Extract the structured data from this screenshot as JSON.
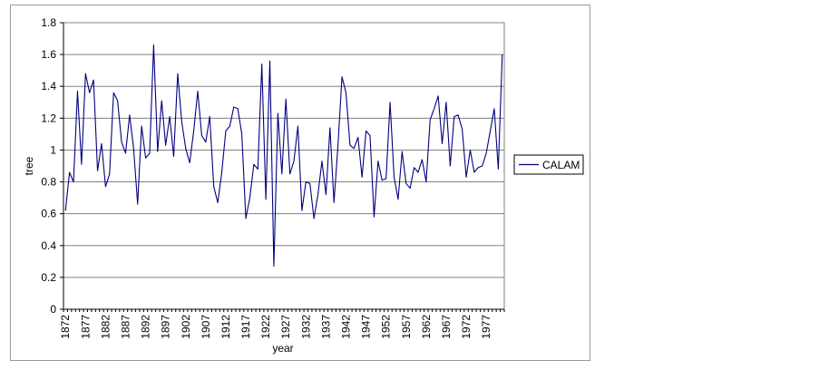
{
  "chart_data": {
    "type": "line",
    "xlabel": "year",
    "ylabel": "tree",
    "ylim": [
      0,
      1.8
    ],
    "y_ticks": [
      "0",
      "0.2",
      "0.4",
      "0.6",
      "0.8",
      "1",
      "1.2",
      "1.4",
      "1.6",
      "1.8"
    ],
    "x_ticks": [
      "1872",
      "1877",
      "1882",
      "1887",
      "1892",
      "1897",
      "1902",
      "1907",
      "1912",
      "1917",
      "1922",
      "1927",
      "1932",
      "1937",
      "1942",
      "1947",
      "1952",
      "1957",
      "1962",
      "1967",
      "1972",
      "1977"
    ],
    "grid": true,
    "legend_position": "right",
    "x_start": 1872,
    "x_end": 1980,
    "series": [
      {
        "name": "CALAM",
        "color": "#000080",
        "values": [
          0.62,
          0.86,
          0.8,
          1.37,
          0.91,
          1.48,
          1.36,
          1.44,
          0.87,
          1.04,
          0.77,
          0.85,
          1.36,
          1.31,
          1.05,
          0.98,
          1.22,
          1.01,
          0.66,
          1.15,
          0.95,
          0.98,
          1.66,
          0.99,
          1.31,
          1.03,
          1.21,
          0.96,
          1.48,
          1.18,
          1.01,
          0.92,
          1.12,
          1.37,
          1.09,
          1.05,
          1.21,
          0.77,
          0.67,
          0.86,
          1.12,
          1.15,
          1.27,
          1.26,
          1.1,
          0.57,
          0.7,
          0.91,
          0.88,
          1.54,
          0.69,
          1.56,
          0.27,
          1.23,
          0.85,
          1.32,
          0.85,
          0.93,
          1.15,
          0.62,
          0.8,
          0.79,
          0.57,
          0.72,
          0.93,
          0.72,
          1.14,
          0.67,
          1.03,
          1.46,
          1.36,
          1.03,
          1.01,
          1.08,
          0.83,
          1.12,
          1.09,
          0.58,
          0.93,
          0.81,
          0.82,
          1.3,
          0.83,
          0.69,
          0.99,
          0.79,
          0.76,
          0.89,
          0.86,
          0.94,
          0.8,
          1.19,
          1.26,
          1.34,
          1.04,
          1.3,
          0.9,
          1.21,
          1.22,
          1.13,
          0.83,
          1.0,
          0.86,
          0.89,
          0.9,
          0.98,
          1.12,
          1.26,
          0.88,
          1.6
        ]
      }
    ]
  }
}
